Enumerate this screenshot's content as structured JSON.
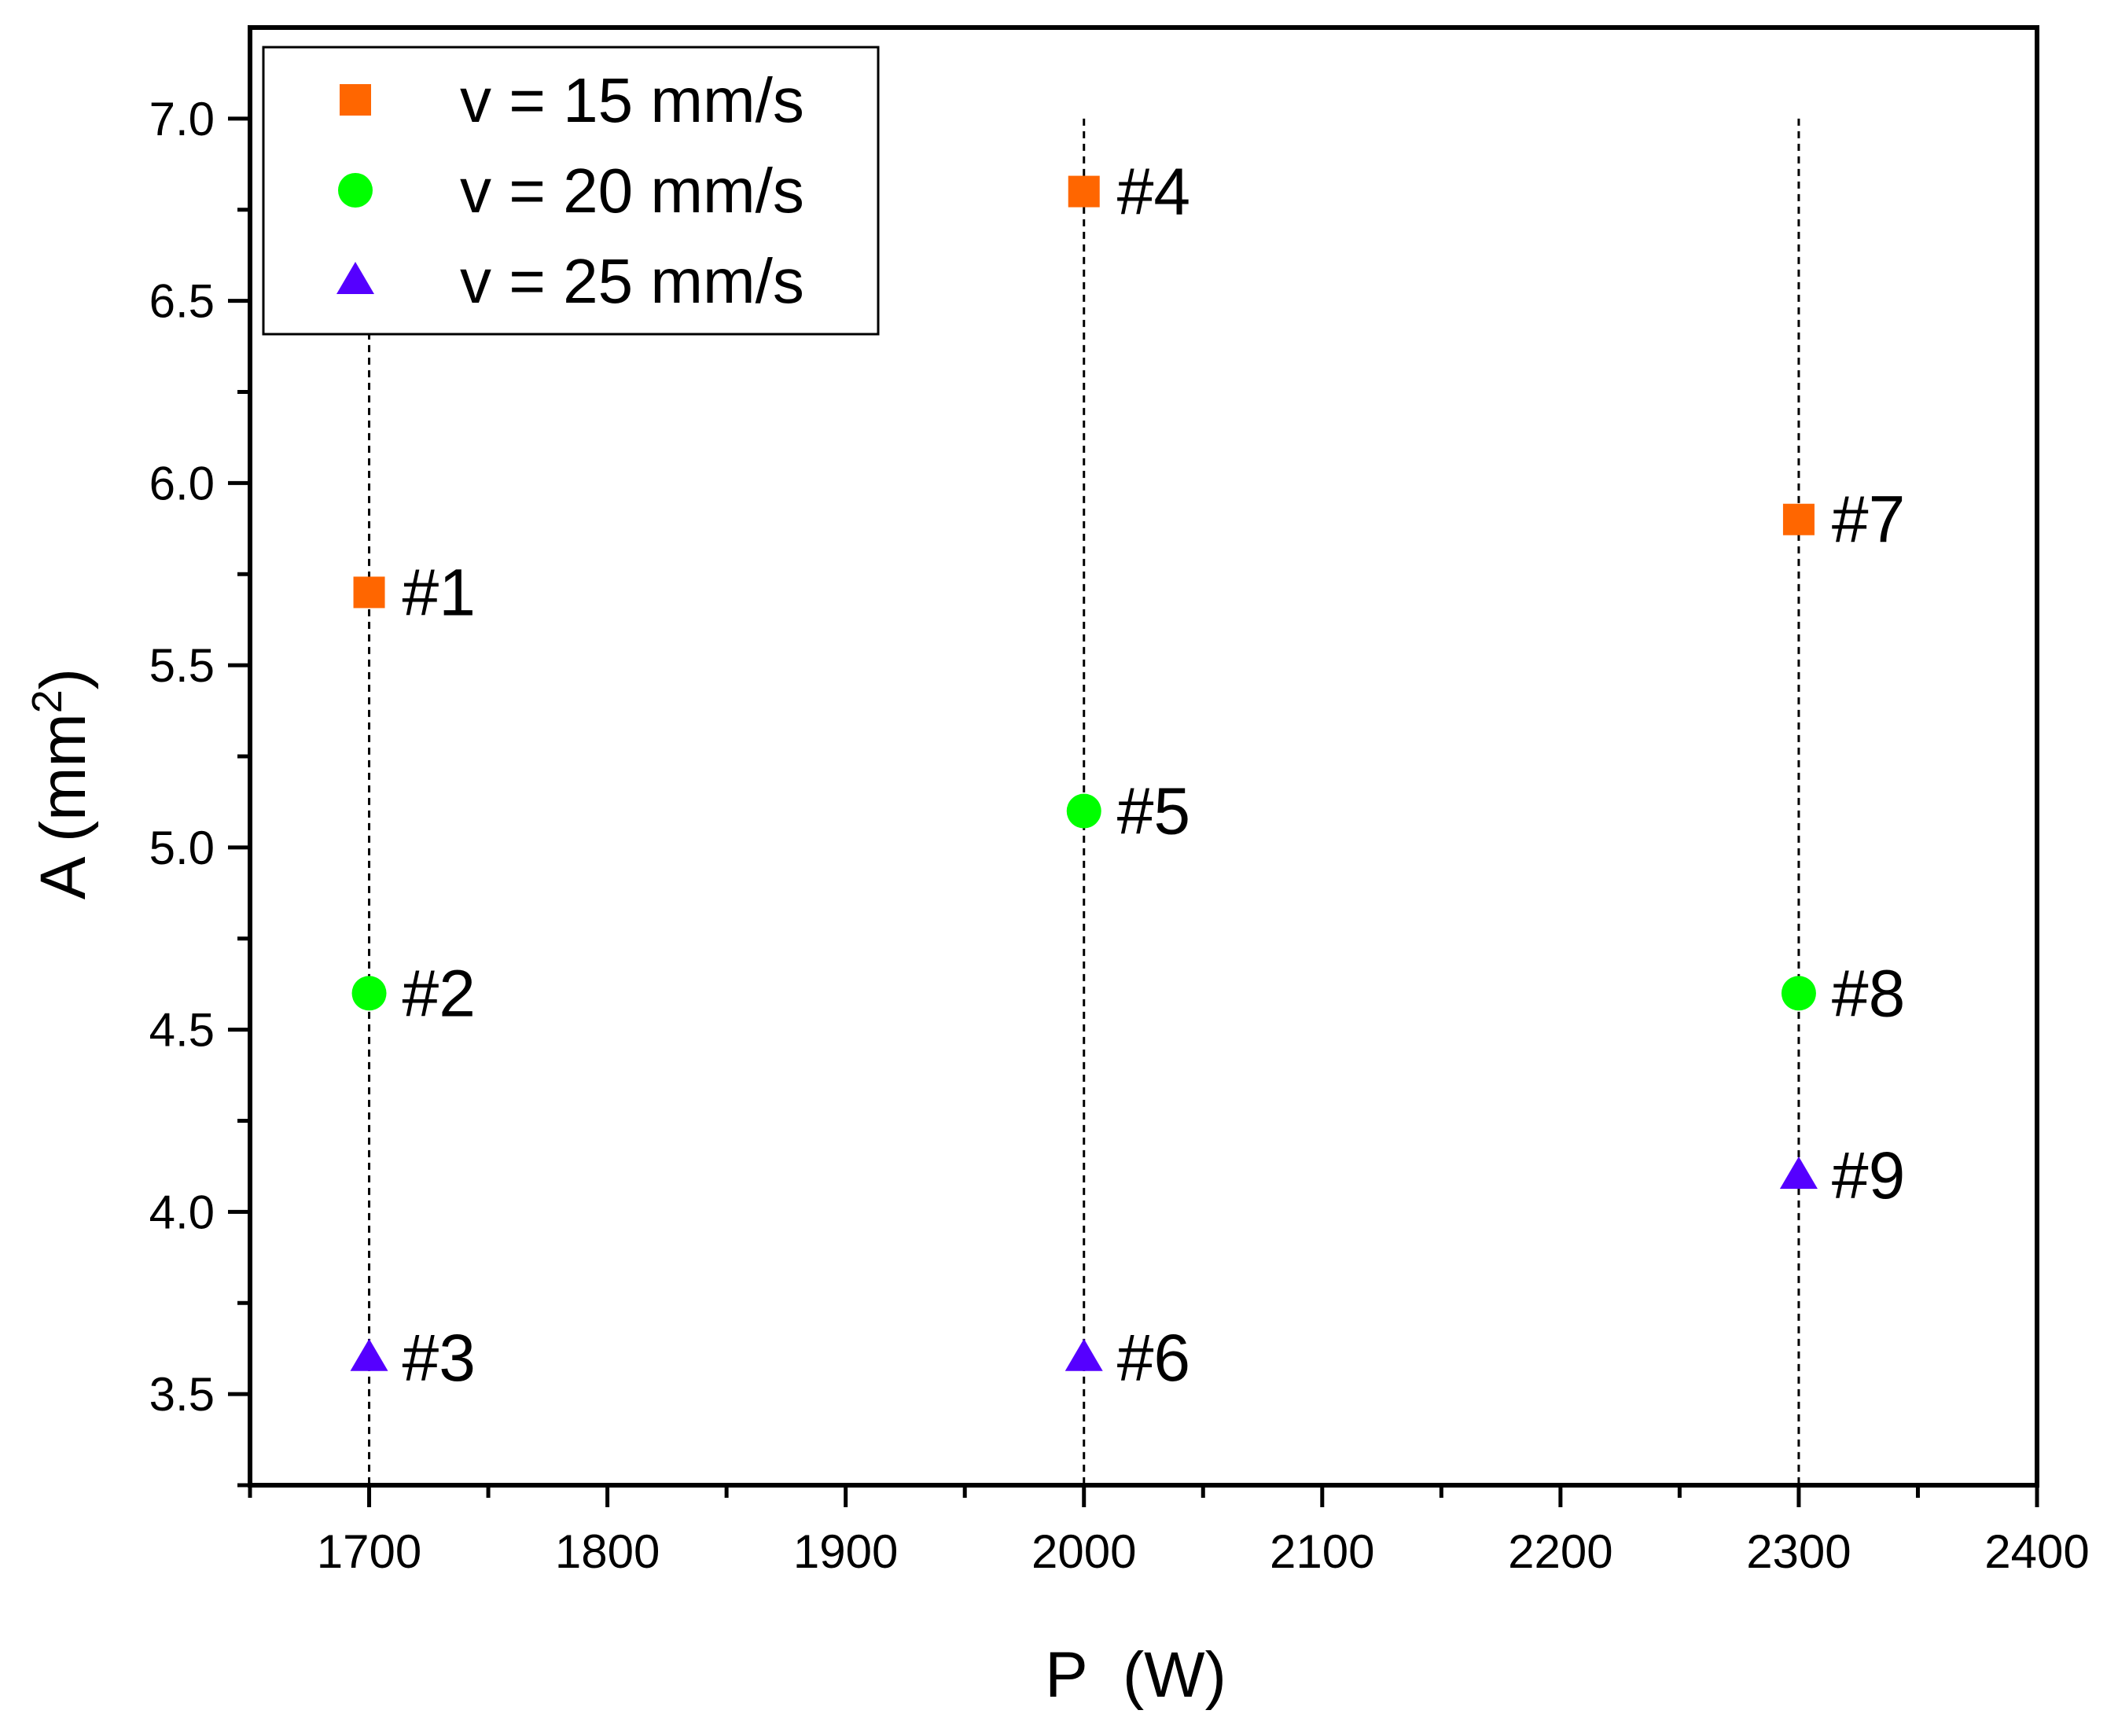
{
  "chart_data": {
    "type": "scatter",
    "title": "",
    "xlabel": "P  (W)",
    "ylabel": {
      "main": "A (mm",
      "sup": "2",
      "end": ")"
    },
    "xlim": [
      1650,
      2400
    ],
    "ylim": [
      3.25,
      7.25
    ],
    "x_ticks": [
      1700,
      1800,
      1900,
      2000,
      2100,
      2200,
      2300,
      2400
    ],
    "x_tick_labels": [
      "1700",
      "1800",
      "1900",
      "2000",
      "2100",
      "2200",
      "2300",
      "2400"
    ],
    "x_minor_ticks": [
      1650,
      1750,
      1850,
      1950,
      2050,
      2150,
      2250,
      2350
    ],
    "y_ticks": [
      3.5,
      4.0,
      4.5,
      5.0,
      5.5,
      6.0,
      6.5,
      7.0
    ],
    "y_tick_labels": [
      "3.5",
      "4.0",
      "4.5",
      "5.0",
      "5.5",
      "6.0",
      "6.5",
      "7.0"
    ],
    "y_minor_ticks": [
      3.25,
      3.75,
      4.25,
      4.75,
      5.25,
      5.75,
      6.25,
      6.75
    ],
    "grid": false,
    "guide_lines": {
      "x": [
        1700,
        2000,
        2300
      ],
      "y_from": 3.25,
      "y_to": 7.0,
      "style": "dashed"
    },
    "legend_position": "top-left",
    "series": [
      {
        "name": "v = 15 mm/s",
        "marker": "square",
        "color": "#ff6600",
        "points": [
          {
            "x": 1700,
            "y": 5.7,
            "label": "#1"
          },
          {
            "x": 2000,
            "y": 6.8,
            "label": "#4"
          },
          {
            "x": 2300,
            "y": 5.9,
            "label": "#7"
          }
        ]
      },
      {
        "name": "v = 20 mm/s",
        "marker": "circle",
        "color": "#00ff00",
        "points": [
          {
            "x": 1700,
            "y": 4.6,
            "label": "#2"
          },
          {
            "x": 2000,
            "y": 5.1,
            "label": "#5"
          },
          {
            "x": 2300,
            "y": 4.6,
            "label": "#8"
          }
        ]
      },
      {
        "name": "v = 25 mm/s",
        "marker": "triangle",
        "color": "#5500ff",
        "points": [
          {
            "x": 1700,
            "y": 3.6,
            "label": "#3"
          },
          {
            "x": 2000,
            "y": 3.6,
            "label": "#6"
          },
          {
            "x": 2300,
            "y": 4.1,
            "label": "#9"
          }
        ]
      }
    ]
  }
}
